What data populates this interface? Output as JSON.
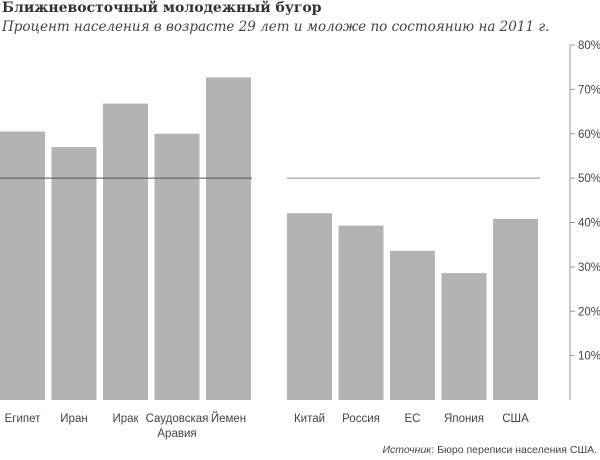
{
  "chart_data": {
    "type": "bar",
    "title": "Ближневосточный молодежный бугор",
    "subtitle": "Процент населения в возрасте 29 лет и моложе по состоянию на 2011 г.",
    "ylim": [
      0,
      80
    ],
    "yticks": [
      "10%",
      "20%",
      "30%",
      "40%",
      "50%",
      "60%",
      "70%",
      "80%"
    ],
    "reference_line": 50,
    "groups": [
      {
        "categories": [
          [
            "Египет"
          ],
          [
            "Иран"
          ],
          [
            "Ирак"
          ],
          [
            "Саудовская",
            "Аравия"
          ],
          [
            "Йемен"
          ]
        ],
        "values": [
          60.5,
          57,
          66.8,
          60,
          72.7
        ]
      },
      {
        "categories": [
          [
            "Китай"
          ],
          [
            "Россия"
          ],
          [
            "ЕС"
          ],
          [
            "Япония"
          ],
          [
            "США"
          ]
        ],
        "values": [
          42.1,
          39.3,
          33.6,
          28.6,
          40.8
        ]
      }
    ],
    "bar_color": "#b3b3b3",
    "source_label": "Источник",
    "source_text": ": Бюро переписи населения США."
  }
}
